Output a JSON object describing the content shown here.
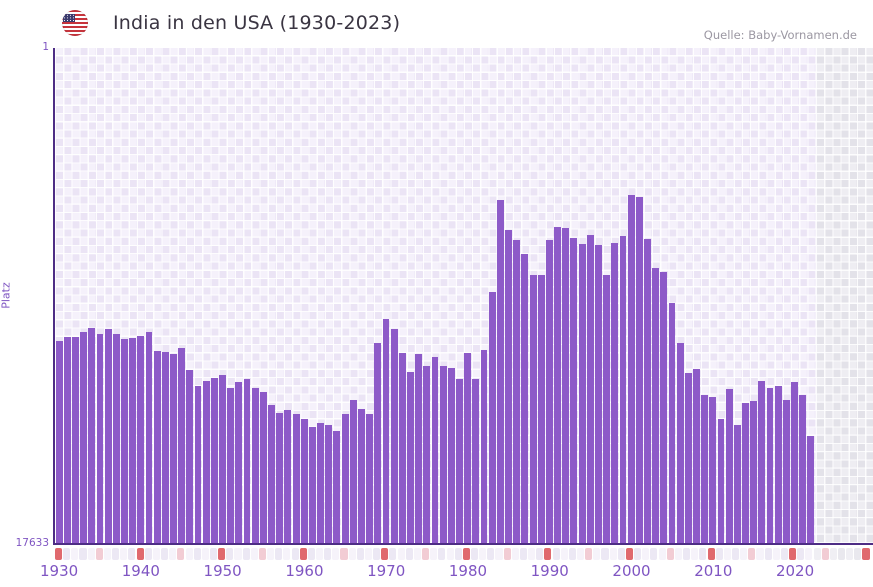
{
  "header": {
    "title": "India in den USA (1930-2023)",
    "source": "Quelle: Baby-Vornamen.de",
    "flag_icon": "us-flag-round"
  },
  "chart_data": {
    "type": "bar",
    "title": "India in den USA (1930-2023)",
    "xlabel": "",
    "ylabel": "Platz",
    "legend": "none",
    "grid": "checkered-lavender, white gridlines",
    "bar_color": "#8d5ac8",
    "axis_line_color": "#4e2d85",
    "y_axis": {
      "top_label": "1",
      "bottom_label": "17633",
      "min": 1,
      "max": 17633,
      "inverted": true,
      "note": "rank 1 at top, 17633 at bottom; bars rise from bottom toward better rank"
    },
    "x_axis": {
      "start_year": 1930,
      "end_year": 2023,
      "last_data_year": 2022,
      "no_data_region": "2023+ shown as gray checkered band"
    },
    "x_ticks": [
      1930,
      1940,
      1950,
      1960,
      1970,
      1980,
      1990,
      2000,
      2010,
      2020
    ],
    "series": [
      [
        1930,
        10425
      ],
      [
        1931,
        10300
      ],
      [
        1932,
        10300
      ],
      [
        1933,
        10125
      ],
      [
        1934,
        9975
      ],
      [
        1935,
        10175
      ],
      [
        1936,
        10000
      ],
      [
        1937,
        10200
      ],
      [
        1938,
        10375
      ],
      [
        1939,
        10325
      ],
      [
        1940,
        10275
      ],
      [
        1941,
        10125
      ],
      [
        1942,
        10800
      ],
      [
        1943,
        10825
      ],
      [
        1944,
        10900
      ],
      [
        1945,
        10700
      ],
      [
        1946,
        11475
      ],
      [
        1947,
        12025
      ],
      [
        1948,
        11850
      ],
      [
        1949,
        11750
      ],
      [
        1950,
        11650
      ],
      [
        1951,
        12100
      ],
      [
        1952,
        11900
      ],
      [
        1953,
        11800
      ],
      [
        1954,
        12125
      ],
      [
        1955,
        12250
      ],
      [
        1956,
        12700
      ],
      [
        1957,
        13000
      ],
      [
        1958,
        12900
      ],
      [
        1959,
        13050
      ],
      [
        1960,
        13200
      ],
      [
        1961,
        13500
      ],
      [
        1962,
        13375
      ],
      [
        1963,
        13425
      ],
      [
        1964,
        13650
      ],
      [
        1965,
        13050
      ],
      [
        1966,
        12550
      ],
      [
        1967,
        12875
      ],
      [
        1968,
        13050
      ],
      [
        1969,
        10525
      ],
      [
        1970,
        9650
      ],
      [
        1971,
        10000
      ],
      [
        1972,
        10875
      ],
      [
        1973,
        11550
      ],
      [
        1974,
        10900
      ],
      [
        1975,
        11325
      ],
      [
        1976,
        11000
      ],
      [
        1977,
        11325
      ],
      [
        1978,
        11400
      ],
      [
        1979,
        11775
      ],
      [
        1980,
        10850
      ],
      [
        1981,
        11800
      ],
      [
        1982,
        10775
      ],
      [
        1983,
        8700
      ],
      [
        1984,
        5400
      ],
      [
        1985,
        6500
      ],
      [
        1986,
        6850
      ],
      [
        1987,
        7350
      ],
      [
        1988,
        8075
      ],
      [
        1989,
        8100
      ],
      [
        1990,
        6850
      ],
      [
        1991,
        6375
      ],
      [
        1992,
        6425
      ],
      [
        1993,
        6775
      ],
      [
        1994,
        7000
      ],
      [
        1995,
        6650
      ],
      [
        1996,
        7025
      ],
      [
        1997,
        8075
      ],
      [
        1998,
        6950
      ],
      [
        1999,
        6700
      ],
      [
        2000,
        5225
      ],
      [
        2001,
        5300
      ],
      [
        2002,
        6800
      ],
      [
        2003,
        7850
      ],
      [
        2004,
        7975
      ],
      [
        2005,
        9100
      ],
      [
        2006,
        10500
      ],
      [
        2007,
        11575
      ],
      [
        2008,
        11425
      ],
      [
        2009,
        12350
      ],
      [
        2010,
        12450
      ],
      [
        2011,
        13225
      ],
      [
        2012,
        12150
      ],
      [
        2013,
        13425
      ],
      [
        2014,
        12650
      ],
      [
        2015,
        12575
      ],
      [
        2016,
        11850
      ],
      [
        2017,
        12100
      ],
      [
        2018,
        12025
      ],
      [
        2019,
        12525
      ],
      [
        2020,
        11900
      ],
      [
        2021,
        12350
      ],
      [
        2022,
        13825
      ]
    ],
    "strip": {
      "decade_color": "#e0696e",
      "half_decade_color": "#f2ccd4",
      "year_colors": [
        "#f6f3fa",
        "#ece8f4"
      ],
      "filler_colors": [
        "#f0eff4",
        "#e9e8ee"
      ],
      "filler_count": 7,
      "filler_pink_index": 1,
      "filler_red_index": 6
    }
  }
}
